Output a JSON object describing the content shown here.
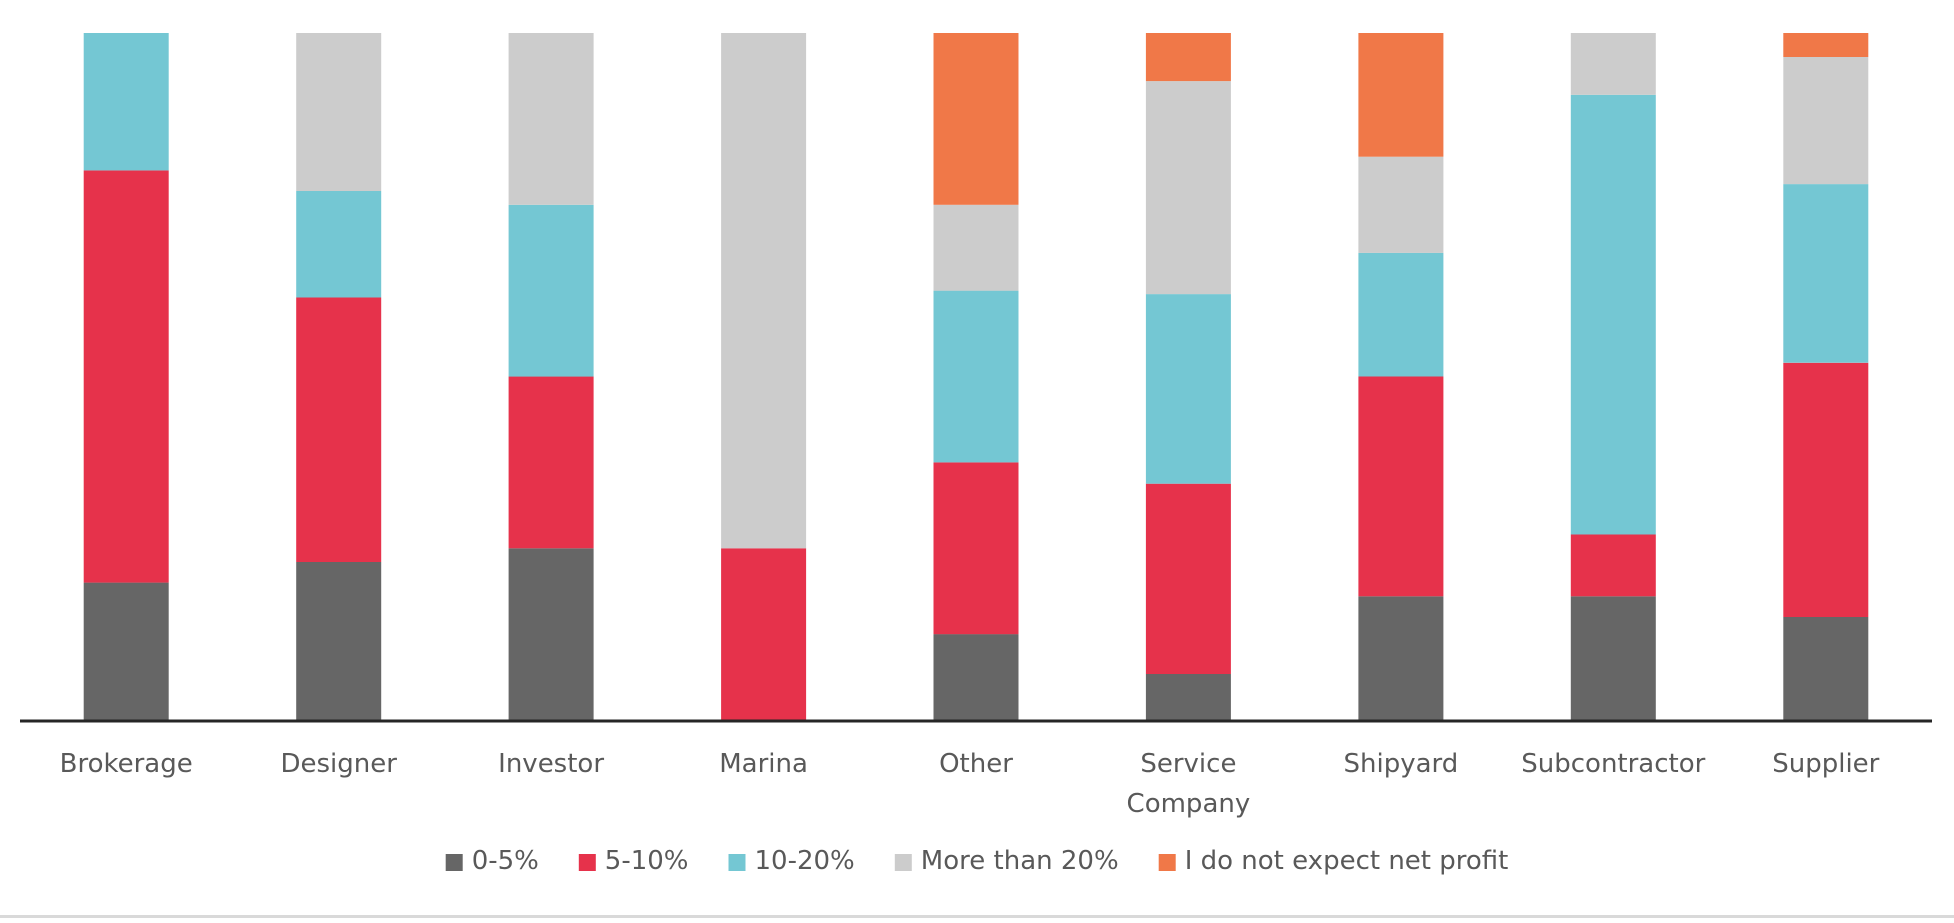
{
  "chart_data": {
    "type": "bar",
    "stacked": true,
    "normalized": true,
    "categories": [
      "Brokerage",
      "Designer",
      "Investor",
      "Marina",
      "Other",
      "Service Company",
      "Shipyard",
      "Subcontractor",
      "Supplier"
    ],
    "series": [
      {
        "name": "0-5%",
        "color": "#666666",
        "values": [
          0.2,
          0.23,
          0.25,
          0.0,
          0.125,
          0.067,
          0.18,
          0.18,
          0.15
        ]
      },
      {
        "name": "5-10%",
        "color": "#e6324b",
        "values": [
          0.6,
          0.385,
          0.25,
          0.25,
          0.25,
          0.277,
          0.32,
          0.09,
          0.37
        ]
      },
      {
        "name": "10-20%",
        "color": "#74c7d3",
        "values": [
          0.2,
          0.155,
          0.25,
          0.0,
          0.25,
          0.276,
          0.18,
          0.64,
          0.26
        ]
      },
      {
        "name": "More than 20%",
        "color": "#cccccc",
        "values": [
          0.0,
          0.23,
          0.25,
          0.75,
          0.125,
          0.31,
          0.14,
          0.09,
          0.185
        ]
      },
      {
        "name": "I do not expect net profit",
        "color": "#f07848",
        "values": [
          0.0,
          0.0,
          0.0,
          0.0,
          0.25,
          0.07,
          0.18,
          0.0,
          0.035
        ]
      }
    ],
    "ylim": [
      0,
      1
    ],
    "grid": false,
    "legend": "bottom"
  }
}
